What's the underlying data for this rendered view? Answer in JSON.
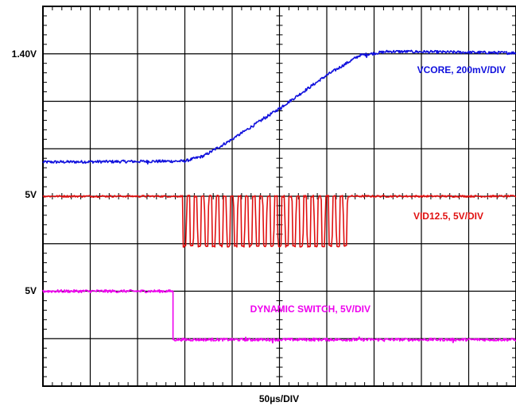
{
  "chart_data": {
    "type": "line",
    "title": "",
    "xlabel": "50µs/DIV",
    "grid": true,
    "divisions": {
      "x": 10,
      "y": 8
    },
    "x_unit": "div",
    "y_unit": "div",
    "xlim": [
      0,
      10
    ],
    "ylim": [
      0,
      8
    ],
    "level_labels": [
      {
        "text": "1.40V",
        "y_div": 7
      },
      {
        "text": "5V",
        "y_div": 4
      },
      {
        "text": "5V",
        "y_div": 2
      }
    ],
    "series": [
      {
        "name": "VCORE, 200mV/DIV",
        "color": "#1010dd",
        "noise": 0.03,
        "points": [
          [
            0,
            4.72
          ],
          [
            3.0,
            4.74
          ],
          [
            3.4,
            4.85
          ],
          [
            4.0,
            5.2
          ],
          [
            5.0,
            5.85
          ],
          [
            6.0,
            6.55
          ],
          [
            6.7,
            6.97
          ],
          [
            7.3,
            7.05
          ],
          [
            10,
            7.02
          ]
        ]
      },
      {
        "name": "VID12.5, 5V/DIV",
        "color": "#e01010",
        "noise": 0.02,
        "levels": {
          "high": 4.0,
          "low": 2.95
        },
        "burst_start_x": 2.95,
        "burst_end_x": 6.5,
        "burst_cycles": 23,
        "points": [
          [
            0,
            4.0
          ],
          [
            10,
            4.0
          ]
        ]
      },
      {
        "name": "DYNAMIC SWITCH, 5V/DIV",
        "color": "#ee00ee",
        "noise": 0.03,
        "points": [
          [
            0,
            2.0
          ],
          [
            2.75,
            2.0
          ],
          [
            2.75,
            0.98
          ],
          [
            10,
            0.98
          ]
        ]
      }
    ]
  }
}
